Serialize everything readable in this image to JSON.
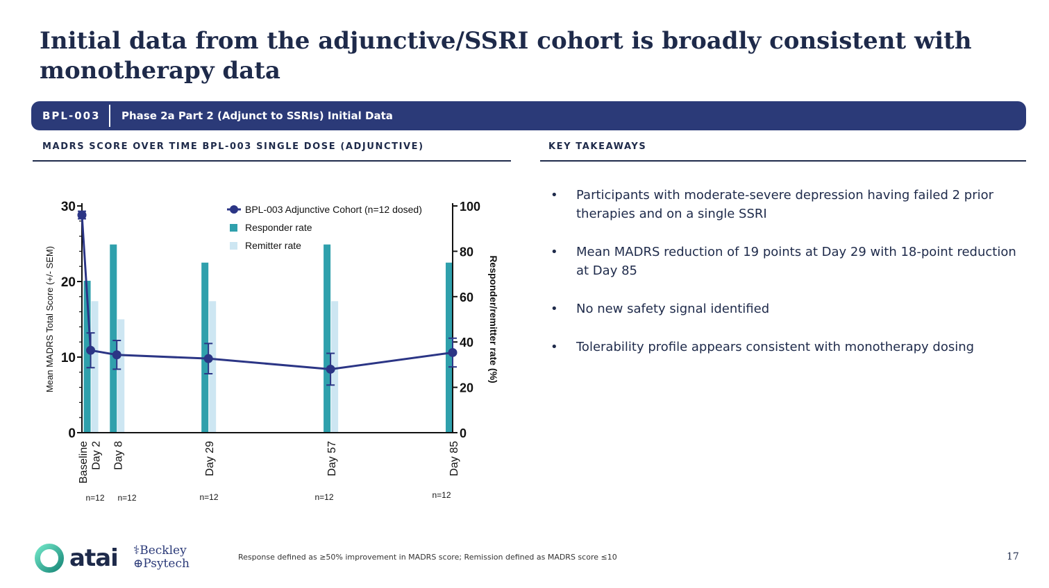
{
  "title": "Initial data from the adjunctive/SSRI cohort is broadly consistent with monotherapy data",
  "banner": {
    "code": "BPL-003",
    "phase": "Phase 2a Part 2 (Adjunct to SSRIs) Initial Data"
  },
  "left_section": {
    "heading": "MADRS  SCORE OVER TIME BPL-003 SINGLE DOSE (ADJUNCTIVE)"
  },
  "right_section": {
    "heading": "KEY TAKEAWAYS",
    "bullets": [
      "Participants with moderate-severe depression having failed 2 prior therapies and on a single SSRI",
      "Mean MADRS reduction of 19 points at Day 29 with 18-point reduction at Day 85",
      "No new safety signal identified",
      "Tolerability profile appears consistent with monotherapy dosing"
    ],
    "bullet_glyph": "•"
  },
  "chart_data": {
    "type": "bar+line",
    "categories": [
      "Baseline",
      "Day 2",
      "Day 8",
      "Day 29",
      "Day 57",
      "Day 85"
    ],
    "n_labels": [
      "n=12",
      "n=12",
      "n=12",
      "n=12",
      "n=12"
    ],
    "ylabel": "Mean MADRS Total Score  (+/- SEM)",
    "y2label": "Responder/remitter rate (%)",
    "ylim": [
      0,
      30
    ],
    "y2lim": [
      0,
      100
    ],
    "yticks": [
      "0",
      "10",
      "20",
      "30"
    ],
    "y2ticks": [
      "0",
      "20",
      "40",
      "60",
      "80",
      "100"
    ],
    "legend": {
      "line": "BPL-003 Adjunctive Cohort (n=12 dosed)",
      "responder": "Responder rate",
      "remitter": "Remitter rate"
    },
    "line_series": {
      "name": "BPL-003 Adjunctive Cohort (n=12 dosed)",
      "days": [
        0,
        2,
        8,
        29,
        57,
        85
      ],
      "values": [
        28.8,
        10.9,
        10.3,
        9.8,
        8.4,
        10.6
      ],
      "sem": [
        0.5,
        2.3,
        1.9,
        2.0,
        2.1,
        1.9
      ]
    },
    "bar_series": [
      {
        "name": "Responder rate",
        "days": [
          2,
          8,
          29,
          57,
          85
        ],
        "values": [
          67,
          83,
          75,
          83,
          75
        ]
      },
      {
        "name": "Remitter rate",
        "days": [
          2,
          8,
          29,
          57,
          85
        ],
        "values": [
          58,
          50,
          58,
          58,
          0
        ]
      }
    ],
    "colors": {
      "line": "#2b3585",
      "responder": "#2fa0ac",
      "remitter": "#cde6f2",
      "axis": "#111111"
    }
  },
  "footer": {
    "note": "Response defined as ≥50% improvement in MADRS score; Remission defined as MADRS score ≤10",
    "page_number": "17",
    "logo_atai": "atai",
    "logo_beckley_line1": "Beckley",
    "logo_beckley_line2": "Psytech"
  }
}
